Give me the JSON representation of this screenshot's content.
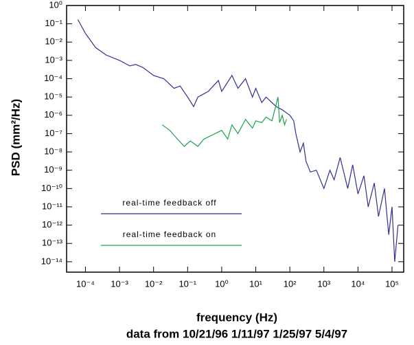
{
  "chart_data": {
    "type": "line",
    "xlabel": "frequency (Hz)",
    "subtitle": "data from 10/21/96  1/11/97  1/25/97  5/4/97",
    "ylabel": "PSD (mm²/Hz)",
    "xscale": "log",
    "yscale": "log",
    "xlim": [
      2.8e-05,
      220000.0
    ],
    "ylim": [
      2.7e-15,
      1
    ],
    "xticks": [
      {
        "value": 0.0001,
        "label": "10⁻⁴"
      },
      {
        "value": 0.001,
        "label": "10⁻³"
      },
      {
        "value": 0.01,
        "label": "10⁻²"
      },
      {
        "value": 0.1,
        "label": "10⁻¹"
      },
      {
        "value": 1,
        "label": "10⁰"
      },
      {
        "value": 10,
        "label": "10¹"
      },
      {
        "value": 100,
        "label": "10²"
      },
      {
        "value": 1000,
        "label": "10³"
      },
      {
        "value": 10000,
        "label": "10⁴"
      },
      {
        "value": 100000,
        "label": "10⁵"
      }
    ],
    "yticks": [
      {
        "value": 1,
        "label": "10⁰"
      },
      {
        "value": 0.1,
        "label": "10⁻¹"
      },
      {
        "value": 0.01,
        "label": "10⁻²"
      },
      {
        "value": 0.001,
        "label": "10⁻³"
      },
      {
        "value": 0.0001,
        "label": "10⁻⁴"
      },
      {
        "value": 1e-05,
        "label": "10⁻⁵"
      },
      {
        "value": 1e-06,
        "label": "10⁻⁶"
      },
      {
        "value": 1e-07,
        "label": "10⁻⁷"
      },
      {
        "value": 1e-08,
        "label": "10⁻⁸"
      },
      {
        "value": 1e-09,
        "label": "10⁻⁹"
      },
      {
        "value": 1e-10,
        "label": "10⁻¹⁰"
      },
      {
        "value": 1e-11,
        "label": "10⁻¹¹"
      },
      {
        "value": 1e-12,
        "label": "10⁻¹²"
      },
      {
        "value": 1e-13,
        "label": "10⁻¹³"
      },
      {
        "value": 1e-14,
        "label": "10⁻¹⁴"
      }
    ],
    "legend": "lower left",
    "series": [
      {
        "name": "real-time feedback off",
        "color": "#2b2f8f",
        "x": [
          6e-05,
          0.0001,
          0.0002,
          0.0004,
          0.001,
          0.002,
          0.003,
          0.005,
          0.01,
          0.02,
          0.04,
          0.06,
          0.1,
          0.15,
          0.2,
          0.4,
          0.8,
          1,
          2,
          3,
          5,
          8,
          10,
          15,
          20,
          40,
          60,
          100,
          130,
          150,
          200,
          250,
          300,
          400,
          600,
          1000,
          1500,
          2000,
          3000,
          5000,
          7000,
          10000,
          15000,
          20000,
          30000,
          40000,
          60000,
          80000,
          100000,
          120000,
          150000
        ],
        "values": [
          0.17,
          0.03,
          0.005,
          0.002,
          0.001,
          0.0005,
          0.0006,
          0.0004,
          0.00015,
          0.0001,
          3e-05,
          4e-05,
          1e-05,
          3e-06,
          1e-05,
          2e-05,
          8e-05,
          2e-05,
          0.00015,
          3e-05,
          0.0001,
          1e-05,
          3e-05,
          5e-06,
          1e-05,
          3e-06,
          2e-06,
          1e-06,
          5e-07,
          1e-07,
          1e-08,
          3e-08,
          3e-09,
          8e-10,
          1e-09,
          1e-10,
          1e-09,
          3e-10,
          5e-09,
          1e-10,
          2e-09,
          5e-11,
          5e-10,
          1e-11,
          2e-10,
          3e-12,
          1e-10,
          3e-13,
          1e-11,
          1e-14,
          1e-12
        ]
      },
      {
        "name": "real-time feedback on",
        "color": "#1aa34a",
        "x": [
          0.018,
          0.03,
          0.05,
          0.08,
          0.12,
          0.2,
          0.3,
          0.5,
          1,
          1.5,
          2,
          3,
          5,
          8,
          10,
          15,
          20,
          30,
          45,
          50,
          60,
          70,
          80
        ],
        "values": [
          3e-07,
          1.5e-07,
          5e-08,
          2e-08,
          4e-08,
          2e-08,
          5e-08,
          8e-08,
          1.5e-07,
          5e-08,
          3e-07,
          1e-07,
          6e-07,
          2e-07,
          5e-07,
          4e-07,
          8e-07,
          5e-07,
          1e-05,
          4e-07,
          1e-06,
          3e-07,
          6e-07
        ]
      }
    ]
  }
}
